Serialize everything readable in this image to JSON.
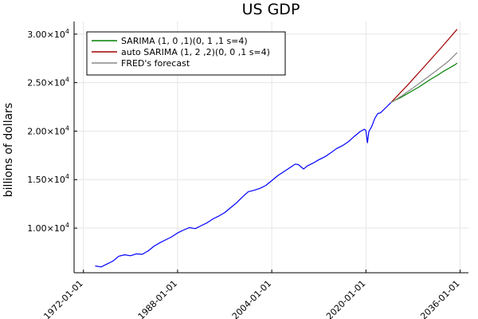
{
  "chart_data": {
    "type": "line",
    "title": "US GDP",
    "xlabel": "",
    "ylabel": "billions of dollars",
    "x_ticks": [
      "1972-01-01",
      "1988-01-01",
      "2004-01-01",
      "2020-01-01",
      "2036-01-01"
    ],
    "y_ticks": [
      {
        "value": 10000,
        "mantissa": "1.00×10",
        "exp": "4"
      },
      {
        "value": 15000,
        "mantissa": "1.50×10",
        "exp": "4"
      },
      {
        "value": 20000,
        "mantissa": "2.00×10",
        "exp": "4"
      },
      {
        "value": 25000,
        "mantissa": "2.50×10",
        "exp": "4"
      },
      {
        "value": 30000,
        "mantissa": "3.00×10",
        "exp": "4"
      }
    ],
    "xlim": [
      "1970-06-01",
      "2037-06-01"
    ],
    "ylim": [
      5400,
      31300
    ],
    "grid": true,
    "legend_position": "top-left",
    "series": [
      {
        "key": "actual",
        "color": "#0000ff",
        "points": [
          [
            "1974-01-01",
            6100
          ],
          [
            "1975-01-01",
            6000
          ],
          [
            "1976-01-01",
            6300
          ],
          [
            "1977-01-01",
            6600
          ],
          [
            "1978-01-01",
            7100
          ],
          [
            "1979-01-01",
            7250
          ],
          [
            "1980-01-01",
            7150
          ],
          [
            "1981-01-01",
            7350
          ],
          [
            "1982-01-01",
            7300
          ],
          [
            "1983-01-01",
            7650
          ],
          [
            "1984-01-01",
            8150
          ],
          [
            "1985-01-01",
            8500
          ],
          [
            "1986-01-01",
            8800
          ],
          [
            "1987-01-01",
            9100
          ],
          [
            "1988-01-01",
            9500
          ],
          [
            "1989-01-01",
            9800
          ],
          [
            "1990-01-01",
            10050
          ],
          [
            "1991-01-01",
            9950
          ],
          [
            "1992-01-01",
            10250
          ],
          [
            "1993-01-01",
            10550
          ],
          [
            "1994-01-01",
            10950
          ],
          [
            "1995-01-01",
            11250
          ],
          [
            "1996-01-01",
            11600
          ],
          [
            "1997-01-01",
            12100
          ],
          [
            "1998-01-01",
            12600
          ],
          [
            "1999-01-01",
            13200
          ],
          [
            "2000-01-01",
            13750
          ],
          [
            "2001-01-01",
            13900
          ],
          [
            "2002-01-01",
            14100
          ],
          [
            "2003-01-01",
            14400
          ],
          [
            "2004-01-01",
            14900
          ],
          [
            "2005-01-01",
            15400
          ],
          [
            "2006-01-01",
            15800
          ],
          [
            "2007-01-01",
            16200
          ],
          [
            "2008-01-01",
            16600
          ],
          [
            "2008-07-01",
            16550
          ],
          [
            "2009-06-01",
            16100
          ],
          [
            "2010-01-01",
            16400
          ],
          [
            "2011-01-01",
            16700
          ],
          [
            "2012-01-01",
            17050
          ],
          [
            "2013-01-01",
            17350
          ],
          [
            "2014-01-01",
            17750
          ],
          [
            "2015-01-01",
            18200
          ],
          [
            "2016-01-01",
            18500
          ],
          [
            "2017-01-01",
            18900
          ],
          [
            "2018-01-01",
            19450
          ],
          [
            "2019-01-01",
            19950
          ],
          [
            "2019-10-01",
            20200
          ],
          [
            "2020-01-01",
            20050
          ],
          [
            "2020-04-01",
            18800
          ],
          [
            "2020-07-01",
            19950
          ],
          [
            "2021-01-01",
            20500
          ],
          [
            "2021-07-01",
            21300
          ],
          [
            "2022-01-01",
            21800
          ],
          [
            "2022-07-01",
            21900
          ],
          [
            "2023-01-01",
            22200
          ],
          [
            "2023-07-01",
            22500
          ],
          [
            "2024-01-01",
            22800
          ],
          [
            "2024-04-01",
            22950
          ]
        ]
      },
      {
        "key": "sarima",
        "name": "SARIMA (1, 0 ,1)(0, 1 ,1 s=4)",
        "color": "#008000",
        "points": [
          [
            "2024-04-01",
            22950
          ],
          [
            "2025-01-01",
            23200
          ],
          [
            "2026-01-01",
            23500
          ],
          [
            "2027-01-01",
            23850
          ],
          [
            "2028-01-01",
            24200
          ],
          [
            "2029-01-01",
            24550
          ],
          [
            "2030-01-01",
            24950
          ],
          [
            "2031-01-01",
            25350
          ],
          [
            "2032-01-01",
            25700
          ],
          [
            "2033-01-01",
            26100
          ],
          [
            "2034-01-01",
            26450
          ],
          [
            "2035-01-01",
            26800
          ],
          [
            "2035-07-01",
            27000
          ]
        ]
      },
      {
        "key": "auto",
        "name": "auto SARIMA (1, 2 ,2)(0, 0 ,1 s=4)",
        "color": "#a00000",
        "points": [
          [
            "2024-04-01",
            22950
          ],
          [
            "2027-01-01",
            24700
          ],
          [
            "2030-01-01",
            26700
          ],
          [
            "2033-01-01",
            28750
          ],
          [
            "2035-07-01",
            30500
          ]
        ]
      },
      {
        "key": "fred",
        "name": "FRED's forecast",
        "color": "#888888",
        "points": [
          [
            "2024-04-01",
            22950
          ],
          [
            "2026-01-01",
            23600
          ],
          [
            "2028-01-01",
            24450
          ],
          [
            "2030-01-01",
            25350
          ],
          [
            "2032-01-01",
            26250
          ],
          [
            "2034-01-01",
            27200
          ],
          [
            "2035-07-01",
            28100
          ]
        ]
      }
    ]
  }
}
